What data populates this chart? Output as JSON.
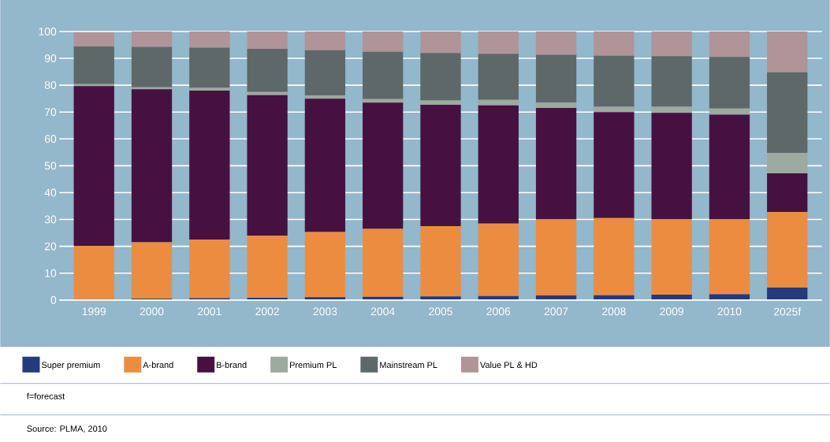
{
  "chart_data": {
    "type": "bar",
    "stacked": true,
    "grid": "y",
    "legend": "bottom",
    "categories": [
      "1999",
      "2000",
      "2001",
      "2002",
      "2003",
      "2004",
      "2005",
      "2006",
      "2007",
      "2008",
      "2009",
      "2010",
      "2025f"
    ],
    "ylim": [
      0,
      100
    ],
    "yticks": [
      0,
      10,
      20,
      30,
      40,
      50,
      60,
      70,
      80,
      90,
      100
    ],
    "series": [
      {
        "name": "Super premium",
        "color": "#233a7c",
        "values": [
          null,
          0.5,
          0.7,
          0.8,
          1,
          1.2,
          1.3,
          1.5,
          1.7,
          1.8,
          2,
          2.1,
          4.6
        ]
      },
      {
        "name": "A-brand",
        "color": "#ec8c41",
        "values": [
          20.2,
          21,
          21.8,
          23.2,
          24.3,
          25.3,
          26.2,
          27,
          28.3,
          28.7,
          28,
          27.9,
          28.2
        ]
      },
      {
        "name": "B-brand",
        "color": "#461141",
        "values": [
          59.5,
          57,
          55.5,
          52.3,
          49.7,
          47,
          45.2,
          44,
          41.5,
          39.5,
          39.7,
          39,
          14.4
        ]
      },
      {
        "name": "Premium PL",
        "color": "#9caa9f",
        "values": [
          0.7,
          0.7,
          1,
          1.2,
          1.2,
          1.3,
          1.6,
          2,
          2,
          2,
          2.3,
          2.3,
          7.6
        ]
      },
      {
        "name": "Mainstream PL",
        "color": "#5e6869",
        "values": [
          14,
          15.1,
          15,
          16,
          16.8,
          17.6,
          17.7,
          17.2,
          17.8,
          19,
          18.8,
          19.2,
          30
        ]
      },
      {
        "name": "Value PL & HD",
        "color": "#b09497",
        "values": [
          5.3,
          5.7,
          6,
          6.5,
          7,
          7.6,
          8,
          8.3,
          8.7,
          9,
          9.2,
          9.5,
          15.2
        ]
      }
    ],
    "annotations": [
      "f=forecast",
      "Source: PLMA, 2010"
    ]
  }
}
